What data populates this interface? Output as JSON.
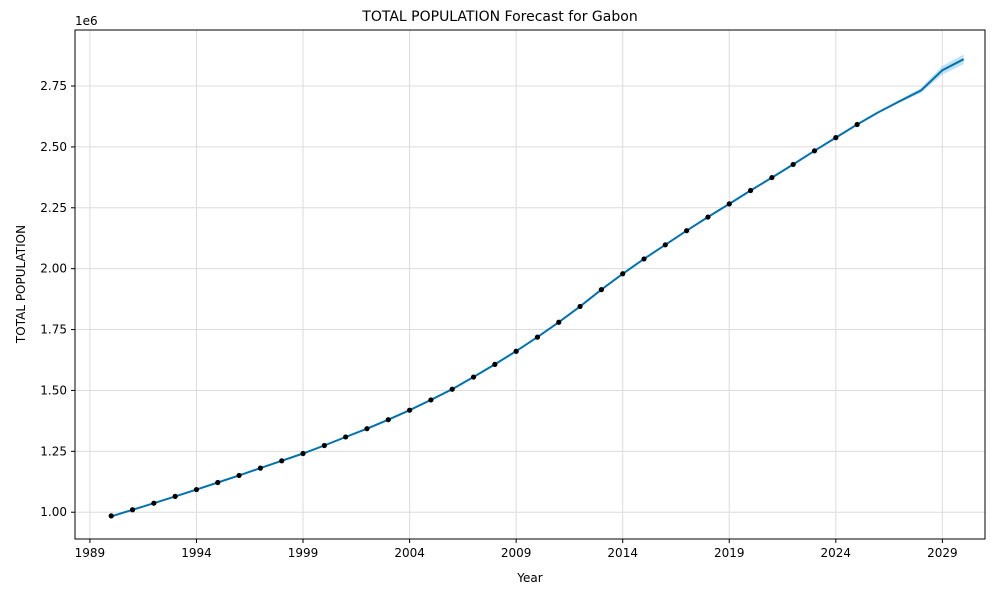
{
  "chart_data": {
    "type": "line",
    "title": "TOTAL POPULATION Forecast for Gabon",
    "xlabel": "Year",
    "ylabel": "TOTAL POPULATION",
    "y_offset_label": "1e6",
    "xlim": [
      1988.3,
      2031.0
    ],
    "ylim": [
      0.89,
      2.98
    ],
    "grid": true,
    "xticks": [
      1989,
      1994,
      1999,
      2004,
      2009,
      2014,
      2019,
      2024,
      2029
    ],
    "yticks": [
      "1.00",
      "1.25",
      "1.50",
      "1.75",
      "2.00",
      "2.25",
      "2.50",
      "2.75"
    ],
    "colors": {
      "line": "#0072B2",
      "interval": "#8FC9EA",
      "points": "#000000",
      "grid": "#DCDCDC"
    },
    "series": [
      {
        "role": "observed",
        "x": [
          1990,
          1991,
          1992,
          1993,
          1994,
          1995,
          1996,
          1997,
          1998,
          1999,
          2000,
          2001,
          2002,
          2003,
          2004,
          2005,
          2006,
          2007,
          2008,
          2009,
          2010,
          2011,
          2012,
          2013,
          2014,
          2015,
          2016,
          2017,
          2018,
          2019,
          2020,
          2021,
          2022,
          2023,
          2024,
          2025
        ],
        "y": [
          0.985,
          1.01,
          1.037,
          1.065,
          1.093,
          1.122,
          1.151,
          1.181,
          1.211,
          1.241,
          1.274,
          1.309,
          1.343,
          1.38,
          1.419,
          1.461,
          1.505,
          1.555,
          1.607,
          1.661,
          1.719,
          1.78,
          1.845,
          1.914,
          1.979,
          2.04,
          2.098,
          2.156,
          2.212,
          2.266,
          2.321,
          2.374,
          2.428,
          2.484,
          2.538,
          2.592
        ]
      },
      {
        "role": "forecast",
        "x": [
          1990,
          1991,
          1992,
          1993,
          1994,
          1995,
          1996,
          1997,
          1998,
          1999,
          2000,
          2001,
          2002,
          2003,
          2004,
          2005,
          2006,
          2007,
          2008,
          2009,
          2010,
          2011,
          2012,
          2013,
          2014,
          2015,
          2016,
          2017,
          2018,
          2019,
          2020,
          2021,
          2022,
          2023,
          2024,
          2025,
          2026,
          2027,
          2028,
          2029,
          2030
        ],
        "y": [
          0.983,
          1.01,
          1.037,
          1.065,
          1.093,
          1.122,
          1.151,
          1.181,
          1.211,
          1.241,
          1.274,
          1.309,
          1.343,
          1.38,
          1.419,
          1.461,
          1.505,
          1.555,
          1.607,
          1.661,
          1.719,
          1.78,
          1.845,
          1.914,
          1.979,
          2.04,
          2.098,
          2.156,
          2.212,
          2.266,
          2.321,
          2.374,
          2.428,
          2.484,
          2.538,
          2.592,
          2.642,
          2.688,
          2.732,
          2.815,
          2.86
        ],
        "lower": [
          0.983,
          1.01,
          1.037,
          1.065,
          1.093,
          1.122,
          1.151,
          1.181,
          1.211,
          1.241,
          1.274,
          1.309,
          1.343,
          1.38,
          1.419,
          1.461,
          1.505,
          1.555,
          1.607,
          1.661,
          1.719,
          1.78,
          1.845,
          1.914,
          1.979,
          2.04,
          2.098,
          2.156,
          2.212,
          2.266,
          2.321,
          2.374,
          2.428,
          2.484,
          2.538,
          2.592,
          2.639,
          2.682,
          2.722,
          2.797,
          2.84
        ],
        "upper": [
          0.983,
          1.01,
          1.037,
          1.065,
          1.093,
          1.122,
          1.151,
          1.181,
          1.211,
          1.241,
          1.274,
          1.309,
          1.343,
          1.38,
          1.419,
          1.461,
          1.505,
          1.555,
          1.607,
          1.661,
          1.719,
          1.78,
          1.845,
          1.914,
          1.979,
          2.04,
          2.098,
          2.156,
          2.212,
          2.266,
          2.321,
          2.374,
          2.428,
          2.484,
          2.538,
          2.592,
          2.645,
          2.694,
          2.742,
          2.832,
          2.88
        ]
      }
    ]
  }
}
